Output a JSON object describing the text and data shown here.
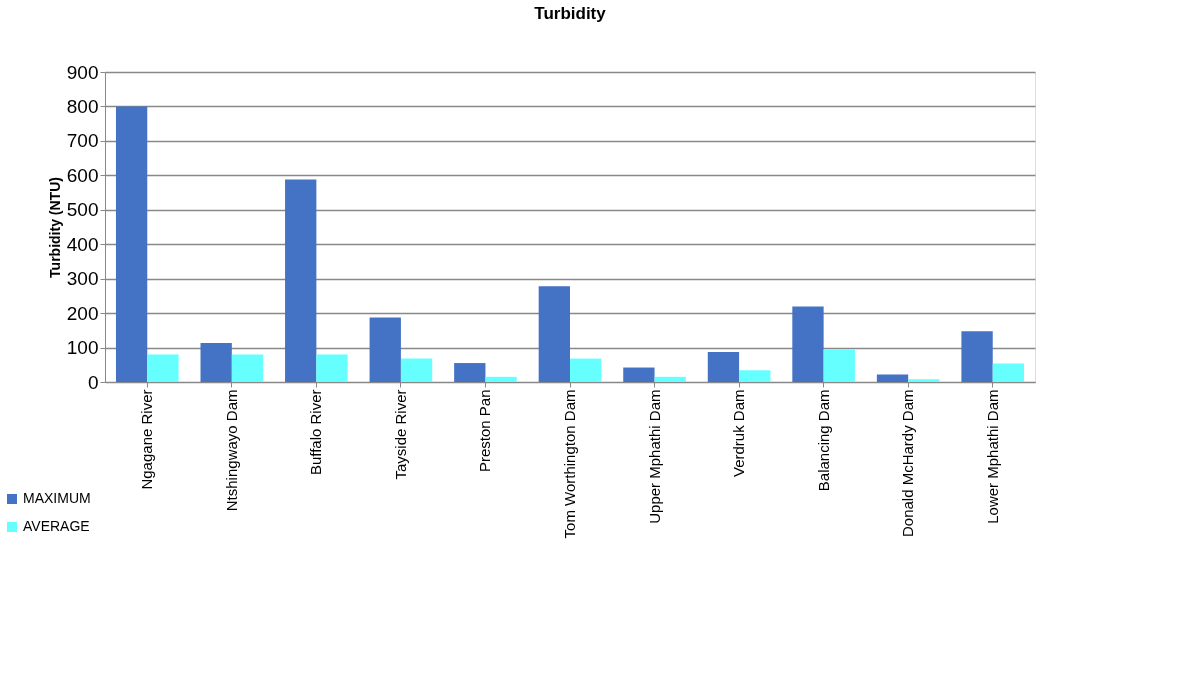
{
  "chart_data": {
    "type": "bar",
    "title": "Turbidity",
    "ylabel": "Turbidity (NTU)",
    "categories": [
      "Ngagane River",
      "Ntshingwayo Dam",
      "Buffalo River",
      "Tayside River",
      "Preston Pan",
      "Tom Worthington Dam",
      "Upper Mphathi Dam",
      "Verdruk Dam",
      "Balancing Dam",
      "Donald McHardy Dam",
      "Lower Mphathi Dam"
    ],
    "series": [
      {
        "name": "MAXIMUM",
        "color": "#4472c4",
        "values": [
          800,
          113,
          588,
          187,
          55,
          278,
          42,
          87,
          219,
          22,
          147
        ]
      },
      {
        "name": "AVERAGE",
        "color": "#66ffff",
        "values": [
          80,
          80,
          80,
          68,
          15,
          68,
          15,
          34,
          95,
          8,
          54
        ]
      }
    ],
    "ylim": [
      0,
      900
    ],
    "yticks": [
      0,
      100,
      200,
      300,
      400,
      500,
      600,
      700,
      800,
      900
    ],
    "grid": "y",
    "legend": "bottom left"
  }
}
